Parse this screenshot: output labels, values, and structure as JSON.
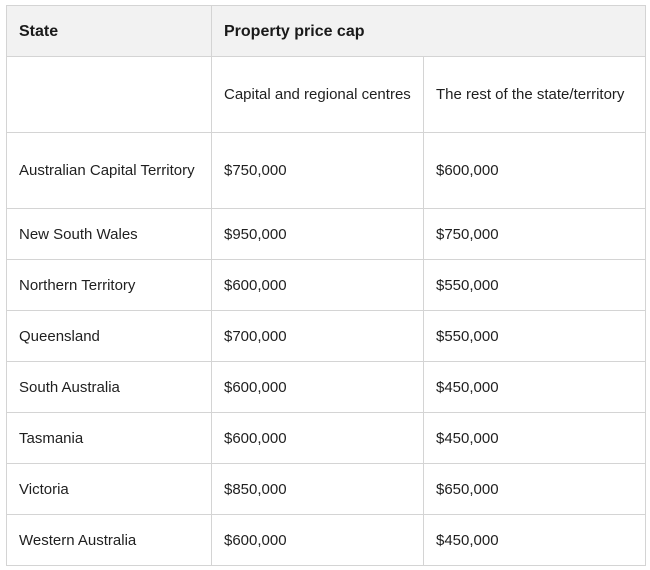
{
  "header": {
    "state": "State",
    "price_cap": "Property price cap",
    "sub_capital": "Capital and regional centres",
    "sub_rest": "The rest of the state/territory"
  },
  "rows": [
    {
      "state": "Australian Capital Territory",
      "capital": "$750,000",
      "rest": "$600,000"
    },
    {
      "state": "New South Wales",
      "capital": "$950,000",
      "rest": "$750,000"
    },
    {
      "state": "Northern Territory",
      "capital": "$600,000",
      "rest": "$550,000"
    },
    {
      "state": "Queensland",
      "capital": "$700,000",
      "rest": "$550,000"
    },
    {
      "state": "South Australia",
      "capital": "$600,000",
      "rest": "$450,000"
    },
    {
      "state": "Tasmania",
      "capital": "$600,000",
      "rest": "$450,000"
    },
    {
      "state": "Victoria",
      "capital": "$850,000",
      "rest": "$650,000"
    },
    {
      "state": "Western Australia",
      "capital": "$600,000",
      "rest": "$450,000"
    }
  ]
}
